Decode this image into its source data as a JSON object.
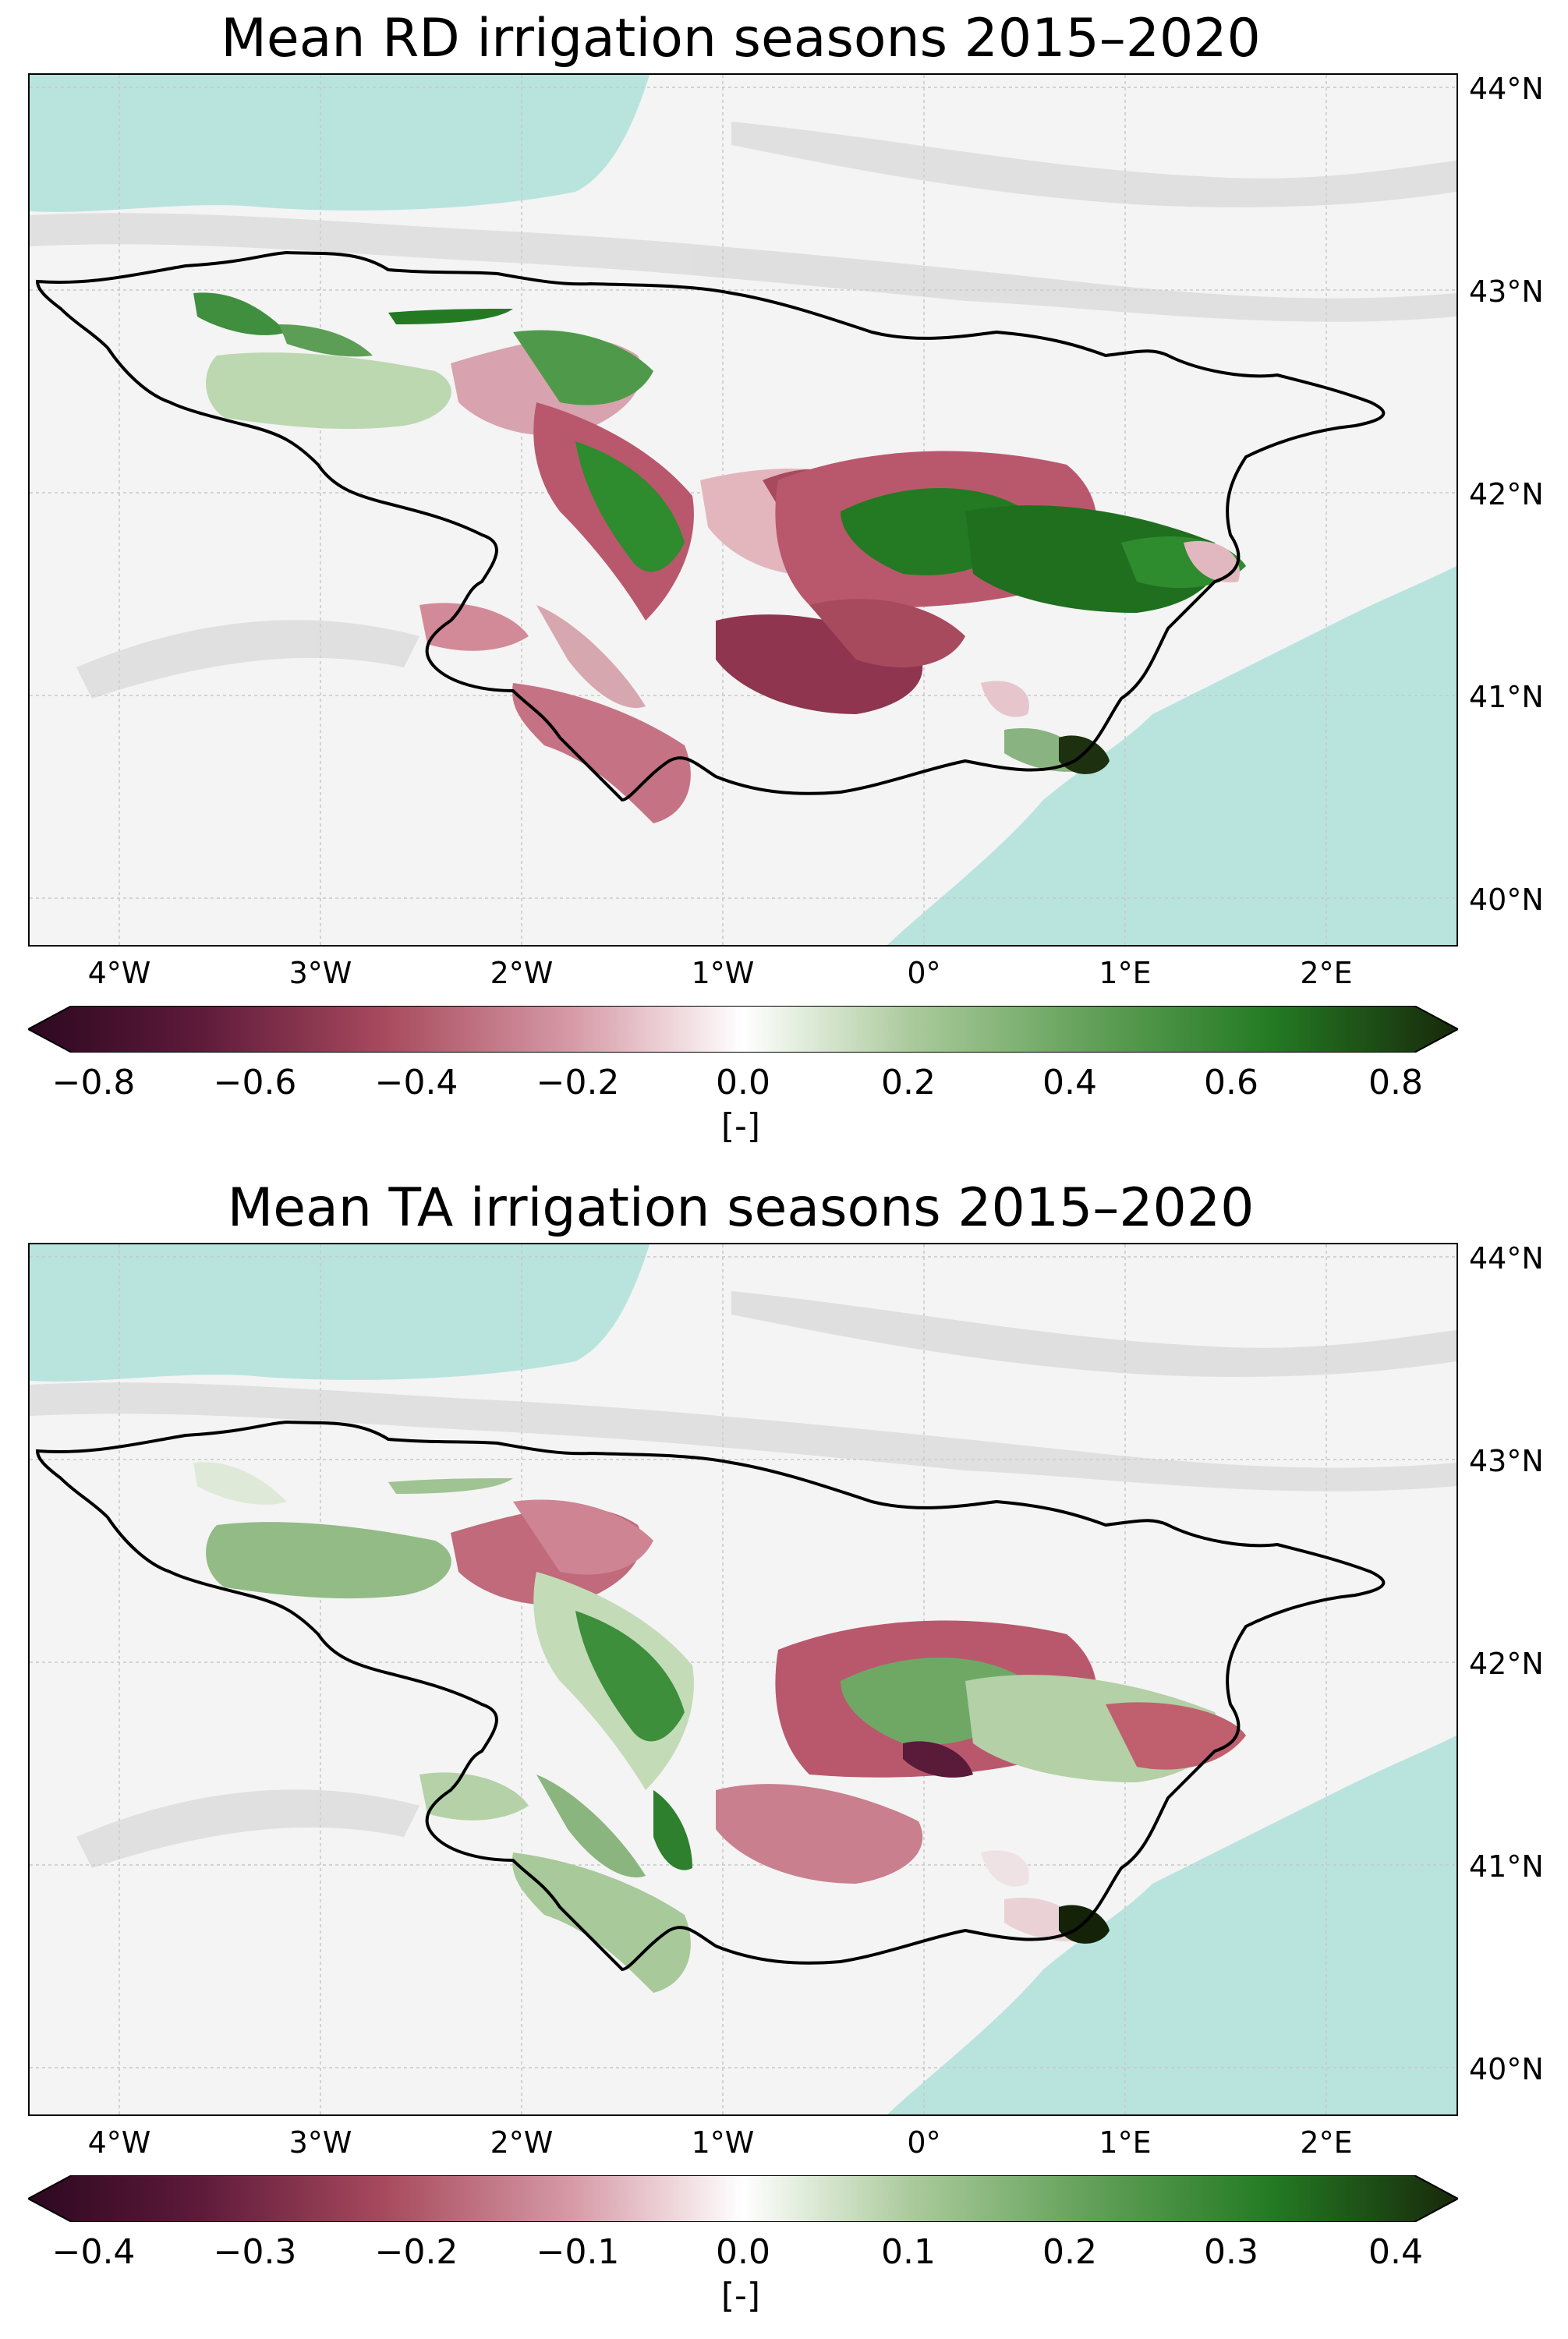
{
  "panels": [
    {
      "title": "Mean RD irrigation seasons 2015–2020",
      "colorbar": {
        "ticks": [
          "−0.8",
          "−0.6",
          "−0.4",
          "−0.2",
          "0.0",
          "0.2",
          "0.4",
          "0.6",
          "0.8"
        ],
        "range": [
          -0.8,
          0.8
        ],
        "unit": "[-]"
      }
    },
    {
      "title": "Mean TA irrigation seasons 2015–2020",
      "colorbar": {
        "ticks": [
          "−0.4",
          "−0.3",
          "−0.2",
          "−0.1",
          "0.0",
          "0.1",
          "0.2",
          "0.3",
          "0.4"
        ],
        "range": [
          -0.4,
          0.4
        ],
        "unit": "[-]"
      }
    }
  ],
  "lat_labels": [
    "44°N",
    "43°N",
    "42°N",
    "41°N",
    "40°N"
  ],
  "lon_labels": [
    "4°W",
    "3°W",
    "2°W",
    "1°W",
    "0°",
    "1°E",
    "2°E"
  ],
  "colors": {
    "sea": "#b9e4de",
    "land": "#f4f4f4",
    "basin_outline": "#000000",
    "negative_strong": "#3a0a22",
    "negative": "#a84a5e",
    "neutral": "#ffffff",
    "positive": "#2e8b2e",
    "positive_strong": "#1a2f0c"
  }
}
